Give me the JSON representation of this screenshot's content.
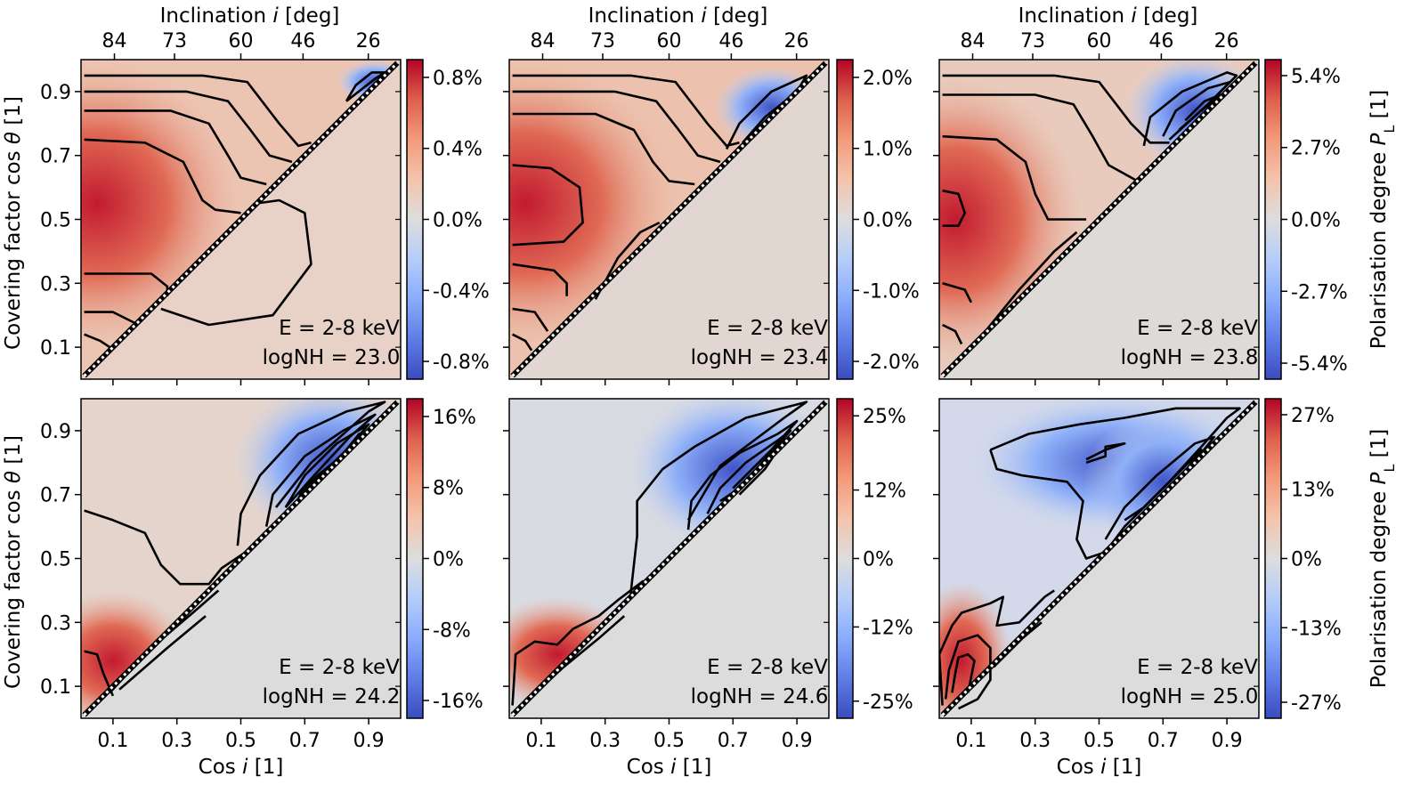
{
  "chart_data": {
    "type": "heatmap",
    "panels": [
      {
        "energy_label": "E = 2-8 keV",
        "lognh_label": "logNH = 23.0",
        "colorbar_ticks": [
          "0.8%",
          "0.4%",
          "0.0%",
          "-0.4%",
          "-0.8%"
        ],
        "colorbar_range": [
          -0.9,
          0.9
        ],
        "colorbar_title": ""
      },
      {
        "energy_label": "E = 2-8 keV",
        "lognh_label": "logNH = 23.4",
        "colorbar_ticks": [
          "2.0%",
          "1.0%",
          "0.0%",
          "-1.0%",
          "-2.0%"
        ],
        "colorbar_range": [
          -2.25,
          2.25
        ],
        "colorbar_title": ""
      },
      {
        "energy_label": "E = 2-8 keV",
        "lognh_label": "logNH = 23.8",
        "colorbar_ticks": [
          "5.4%",
          "2.7%",
          "0.0%",
          "-2.7%",
          "-5.4%"
        ],
        "colorbar_range": [
          -6.0,
          6.0
        ],
        "colorbar_title": "Polarisation degree Pₗ [1]"
      },
      {
        "energy_label": "E = 2-8 keV",
        "lognh_label": "logNH = 24.2",
        "colorbar_ticks": [
          "16%",
          "8%",
          "0%",
          "-8%",
          "-16%"
        ],
        "colorbar_range": [
          -18,
          18
        ],
        "colorbar_title": ""
      },
      {
        "energy_label": "E = 2-8 keV",
        "lognh_label": "logNH = 24.6",
        "colorbar_ticks": [
          "25%",
          "12%",
          "0%",
          "-12%",
          "-25%"
        ],
        "colorbar_range": [
          -28,
          28
        ],
        "colorbar_title": ""
      },
      {
        "energy_label": "E = 2-8 keV",
        "lognh_label": "logNH = 25.0",
        "colorbar_ticks": [
          "27%",
          "13%",
          "0%",
          "-13%",
          "-27%"
        ],
        "colorbar_range": [
          -30,
          30
        ],
        "colorbar_title": "Polarisation degree Pₗ [1]"
      }
    ],
    "x_label_prefix": "Cos ",
    "x_label_var": "i",
    "x_label_suffix": " [1]",
    "y_label_prefix": "Covering factor cos ",
    "y_label_var": "θ",
    "y_label_suffix": " [1]",
    "top_label_prefix": "Inclination ",
    "top_label_var": "i",
    "top_label_suffix": " [deg]",
    "cbar_label_prefix": "Polarisation degree ",
    "cbar_label_var": "P",
    "cbar_label_sub": "L",
    "cbar_label_suffix": " [1]",
    "x_ticks": [
      0.1,
      0.3,
      0.5,
      0.7,
      0.9
    ],
    "x_tick_labels": [
      "0.1",
      "0.3",
      "0.5",
      "0.7",
      "0.9"
    ],
    "y_ticks": [
      0.1,
      0.3,
      0.5,
      0.7,
      0.9
    ],
    "y_tick_labels": [
      "0.1",
      "0.3",
      "0.5",
      "0.7",
      "0.9"
    ],
    "top_ticks_cos": [
      0.1045,
      0.2924,
      0.5,
      0.6947,
      0.8988
    ],
    "top_tick_labels": [
      "84",
      "73",
      "60",
      "46",
      "26"
    ],
    "xlim": [
      0,
      1
    ],
    "ylim": [
      0,
      1
    ],
    "colormap": "coolwarm",
    "colors": {
      "neg": "#3b4cc0",
      "mid": "#dddddd",
      "pos": "#b40426",
      "hidden_region": "#dcdcdc",
      "contour": "#000000"
    }
  }
}
